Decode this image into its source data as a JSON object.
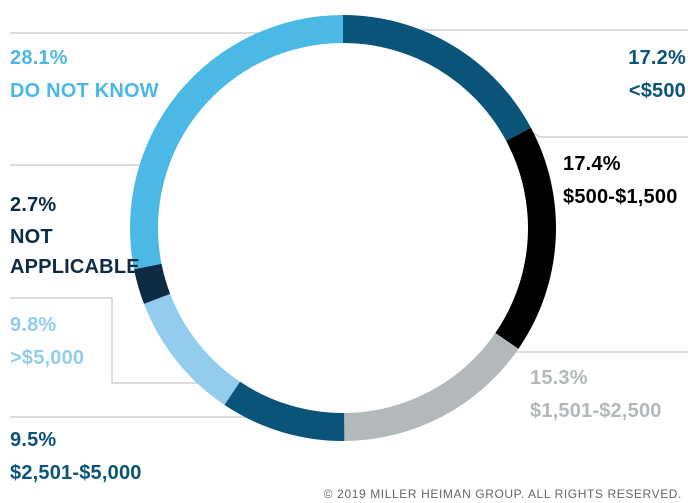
{
  "chart_data": {
    "type": "donut",
    "categories": [
      "<$500",
      "$500-$1,500",
      "$1,501-$2,500",
      "$2,501-$5,000",
      ">$5,000",
      "NOT APPLICABLE",
      "DO NOT KNOW"
    ],
    "values": [
      17.2,
      17.4,
      15.3,
      9.5,
      9.8,
      2.7,
      28.1
    ],
    "value_labels": [
      "17.2%",
      "17.4%",
      "15.3%",
      "9.5%",
      "9.8%",
      "2.7%",
      "28.1%"
    ],
    "colors": [
      "#0b5479",
      "#000000",
      "#b3b8bb",
      "#0b5479",
      "#92cdee",
      "#0d2b45",
      "#4bb8e6"
    ],
    "footer": "© 2019 MILLER HEIMAN GROUP. ALL RIGHTS RESERVED."
  }
}
